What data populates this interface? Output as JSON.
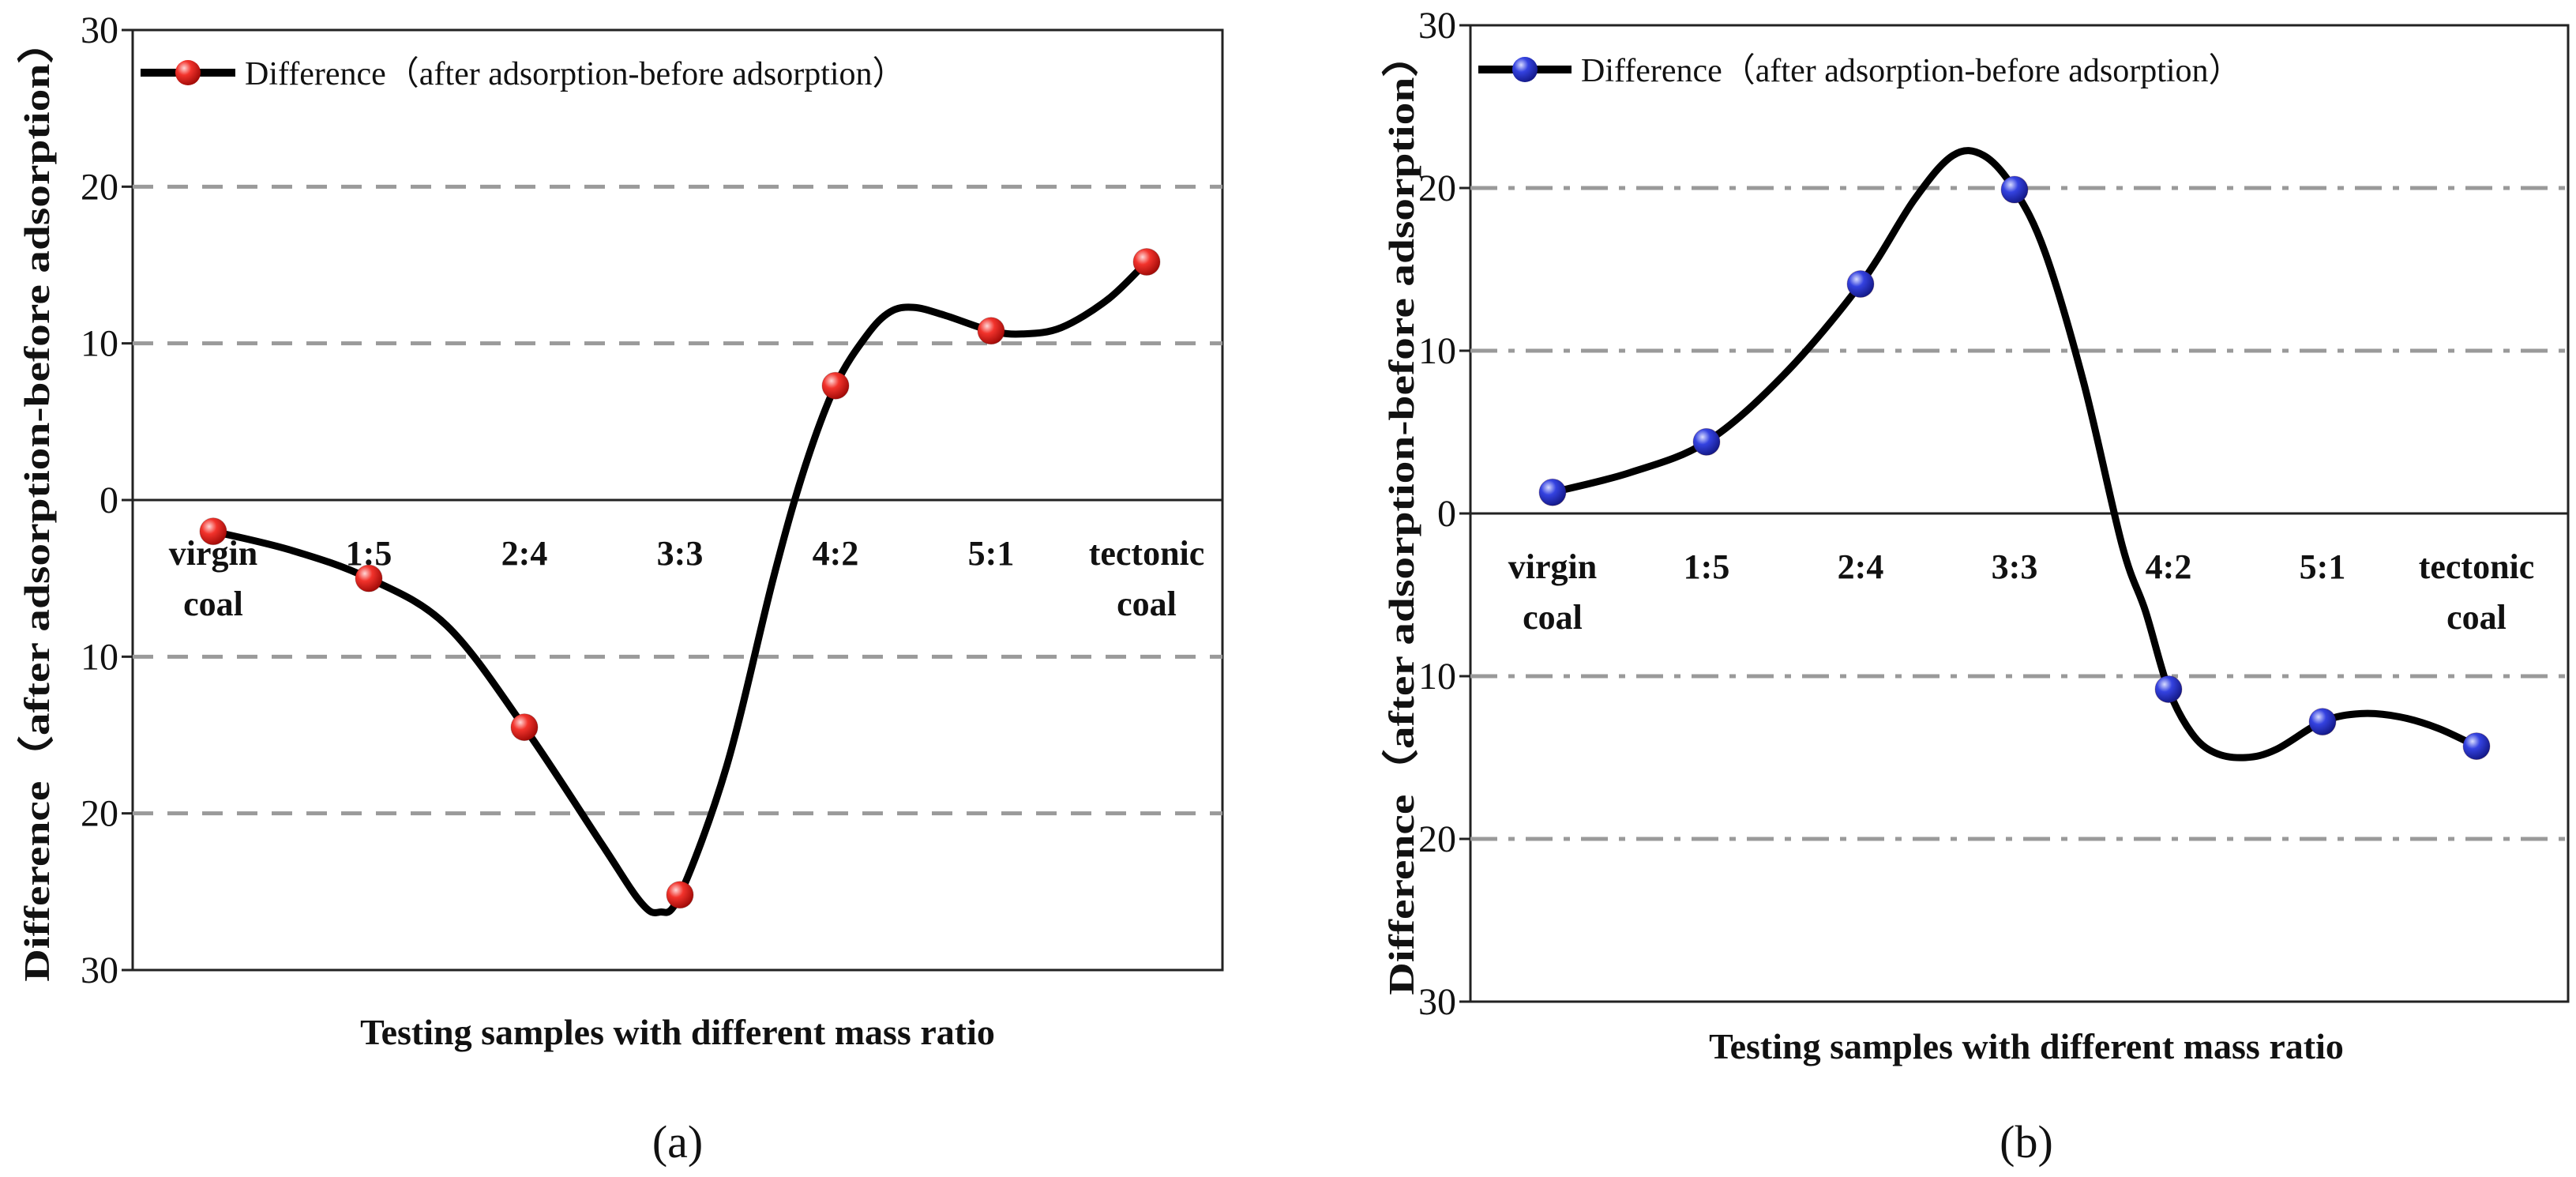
{
  "chart_data": [
    {
      "type": "line",
      "caption": "(a)",
      "categories": [
        "virgin coal",
        "1:5",
        "2:4",
        "3:3",
        "4:2",
        "5:1",
        "tectonic coal"
      ],
      "category_lines": [
        [
          "virgin",
          "coal"
        ],
        [
          "1:5"
        ],
        [
          "2:4"
        ],
        [
          "3:3"
        ],
        [
          "4:2"
        ],
        [
          "5:1"
        ],
        [
          "tectonic",
          "coal"
        ]
      ],
      "series": [
        {
          "name": "Difference（after adsorption-before adsorption）",
          "values": [
            -2,
            -5,
            -14.5,
            -25.2,
            7.3,
            10.8,
            15.2
          ],
          "marker_color": "#e8231f"
        }
      ],
      "curve_points": [
        [
          0,
          -2
        ],
        [
          0.5,
          -3.2
        ],
        [
          1,
          -5
        ],
        [
          1.5,
          -8
        ],
        [
          2,
          -14.5
        ],
        [
          2.5,
          -22
        ],
        [
          2.75,
          -25.7
        ],
        [
          2.87,
          -26.3
        ],
        [
          3,
          -25.2
        ],
        [
          3.3,
          -17
        ],
        [
          3.6,
          -5
        ],
        [
          3.8,
          2
        ],
        [
          4,
          7.3
        ],
        [
          4.2,
          10.5
        ],
        [
          4.35,
          12
        ],
        [
          4.5,
          12.3
        ],
        [
          4.7,
          11.8
        ],
        [
          5,
          10.8
        ],
        [
          5.2,
          10.6
        ],
        [
          5.45,
          11
        ],
        [
          5.75,
          12.8
        ],
        [
          6,
          15.2
        ]
      ],
      "ylabel": "Difference（after adsorption-before adsorption）",
      "xlabel": "Testing samples with different mass ratio",
      "yticks": [
        30,
        20,
        10,
        0,
        -10,
        -20,
        -30
      ],
      "ytick_labels": [
        "30",
        "20",
        "10",
        "0",
        "10",
        "20",
        "30"
      ],
      "ylim": [
        -30,
        30
      ],
      "gridlines": [
        20,
        10,
        -10,
        -20
      ],
      "grid_style": "dashed",
      "legend_position": "top-left"
    },
    {
      "type": "line",
      "caption": "(b)",
      "categories": [
        "virgin coal",
        "1:5",
        "2:4",
        "3:3",
        "4:2",
        "5:1",
        "tectonic coal"
      ],
      "category_lines": [
        [
          "virgin",
          "coal"
        ],
        [
          "1:5"
        ],
        [
          "2:4"
        ],
        [
          "3:3"
        ],
        [
          "4:2"
        ],
        [
          "5:1"
        ],
        [
          "tectonic",
          "coal"
        ]
      ],
      "series": [
        {
          "name": "Difference（after adsorption-before adsorption）",
          "values": [
            1.3,
            4.4,
            14.1,
            19.9,
            -10.8,
            -12.8,
            -14.3
          ],
          "marker_color": "#2a35d6"
        }
      ],
      "curve_points": [
        [
          0,
          1.3
        ],
        [
          0.5,
          2.5
        ],
        [
          1,
          4.4
        ],
        [
          1.5,
          8.5
        ],
        [
          2,
          14.1
        ],
        [
          2.35,
          19.3
        ],
        [
          2.6,
          22
        ],
        [
          2.8,
          22
        ],
        [
          3,
          19.9
        ],
        [
          3.2,
          16
        ],
        [
          3.45,
          8
        ],
        [
          3.7,
          -2
        ],
        [
          3.85,
          -6
        ],
        [
          4,
          -10.8
        ],
        [
          4.15,
          -13.5
        ],
        [
          4.3,
          -14.7
        ],
        [
          4.5,
          -15
        ],
        [
          4.7,
          -14.5
        ],
        [
          5,
          -12.8
        ],
        [
          5.25,
          -12.3
        ],
        [
          5.5,
          -12.5
        ],
        [
          5.75,
          -13.2
        ],
        [
          6,
          -14.3
        ]
      ],
      "ylabel": "Difference（after adsorption-before adsorption）",
      "xlabel": "Testing samples with different mass ratio",
      "yticks": [
        30,
        20,
        10,
        0,
        -10,
        -20,
        -30
      ],
      "ytick_labels": [
        "30",
        "20",
        "10",
        "0",
        "10",
        "20",
        "30"
      ],
      "ylim": [
        -30,
        30
      ],
      "gridlines": [
        20,
        10,
        -10,
        -20
      ],
      "grid_style": "dashdot",
      "legend_position": "top-left"
    }
  ]
}
